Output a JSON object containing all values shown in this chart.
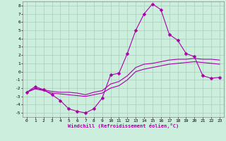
{
  "xlabel": "Windchill (Refroidissement éolien,°C)",
  "bg_color": "#cceedd",
  "grid_color": "#aaccbb",
  "line_color": "#aa00aa",
  "xlim": [
    -0.5,
    23.5
  ],
  "ylim": [
    -5.5,
    8.5
  ],
  "xticks": [
    0,
    1,
    2,
    3,
    4,
    5,
    6,
    7,
    8,
    9,
    10,
    11,
    12,
    13,
    14,
    15,
    16,
    17,
    18,
    19,
    20,
    21,
    22,
    23
  ],
  "yticks": [
    -5,
    -4,
    -3,
    -2,
    -1,
    0,
    1,
    2,
    3,
    4,
    5,
    6,
    7,
    8
  ],
  "series1_x": [
    0,
    1,
    2,
    3,
    4,
    5,
    6,
    7,
    8,
    9,
    10,
    11,
    12,
    13,
    14,
    15,
    16,
    17,
    18,
    19,
    20,
    21,
    22,
    23
  ],
  "series1_y": [
    -2.5,
    -1.8,
    -2.2,
    -2.8,
    -3.5,
    -4.5,
    -4.8,
    -5.0,
    -4.5,
    -3.2,
    -0.4,
    -0.2,
    2.2,
    5.0,
    7.0,
    8.2,
    7.5,
    4.5,
    3.8,
    2.2,
    1.8,
    -0.5,
    -0.8,
    -0.7
  ],
  "series2_x": [
    0,
    1,
    2,
    3,
    4,
    5,
    6,
    7,
    8,
    9,
    10,
    11,
    12,
    13,
    14,
    15,
    16,
    17,
    18,
    19,
    20,
    21,
    22,
    23
  ],
  "series2_y": [
    -2.5,
    -2.0,
    -2.2,
    -2.4,
    -2.5,
    -2.5,
    -2.6,
    -2.8,
    -2.5,
    -2.3,
    -1.5,
    -1.2,
    -0.5,
    0.5,
    0.9,
    1.0,
    1.2,
    1.4,
    1.5,
    1.5,
    1.6,
    1.5,
    1.5,
    1.4
  ],
  "series3_x": [
    0,
    1,
    2,
    3,
    4,
    5,
    6,
    7,
    8,
    9,
    10,
    11,
    12,
    13,
    14,
    15,
    16,
    17,
    18,
    19,
    20,
    21,
    22,
    23
  ],
  "series3_y": [
    -2.5,
    -2.1,
    -2.3,
    -2.6,
    -2.7,
    -2.8,
    -2.9,
    -3.0,
    -2.8,
    -2.6,
    -2.0,
    -1.7,
    -1.0,
    0.0,
    0.3,
    0.5,
    0.7,
    0.9,
    1.0,
    1.1,
    1.2,
    1.1,
    1.0,
    0.9
  ],
  "markersize": 2.5,
  "linewidth": 0.8
}
